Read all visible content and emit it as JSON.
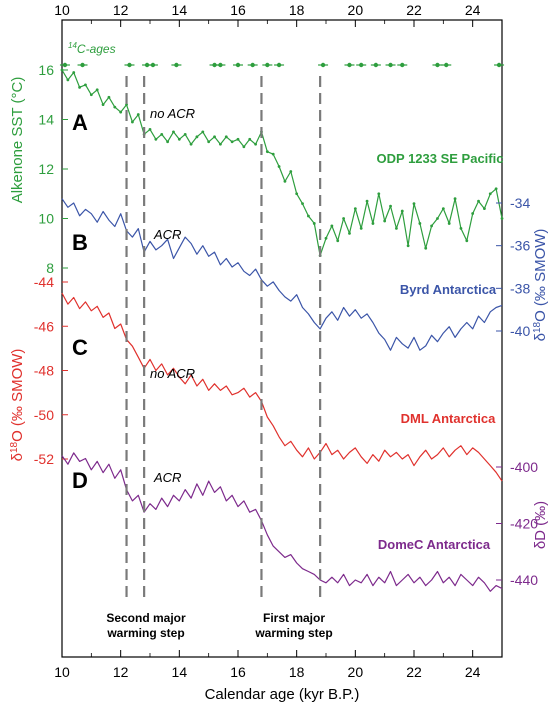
{
  "chart_data": {
    "type": "line",
    "xlabel": "Calendar age (kyr B.P.)",
    "xlim": [
      10,
      25
    ],
    "x_ticks": [
      "10",
      "12",
      "14",
      "16",
      "18",
      "20",
      "22",
      "24"
    ],
    "c14_label": "14C-ages",
    "c14_ages": [
      10.1,
      10.7,
      12.3,
      12.9,
      13.1,
      13.9,
      15.2,
      15.4,
      16.0,
      16.5,
      17.0,
      17.4,
      18.9,
      19.8,
      20.2,
      20.7,
      21.2,
      21.6,
      22.8,
      23.1,
      24.9
    ],
    "panels": [
      {
        "letter": "A",
        "name": "ODP 1233 SE Pacific",
        "ylabel": "Alkenone SST (°C)",
        "axis_side": "left",
        "color": "#2e9e3e",
        "yticks": [
          "8",
          "10",
          "12",
          "14",
          "16"
        ],
        "annotation": "no ACR",
        "x": [
          10.0,
          10.2,
          10.4,
          10.6,
          10.8,
          11.0,
          11.2,
          11.4,
          11.6,
          11.8,
          12.0,
          12.2,
          12.4,
          12.6,
          12.8,
          13.0,
          13.2,
          13.4,
          13.6,
          13.8,
          14.0,
          14.2,
          14.4,
          14.6,
          14.8,
          15.0,
          15.2,
          15.4,
          15.6,
          15.8,
          16.0,
          16.2,
          16.4,
          16.6,
          16.8,
          17.0,
          17.2,
          17.4,
          17.6,
          17.8,
          18.0,
          18.2,
          18.4,
          18.6,
          18.8,
          19.0,
          19.2,
          19.4,
          19.6,
          19.8,
          20.0,
          20.2,
          20.4,
          20.6,
          20.8,
          21.0,
          21.2,
          21.4,
          21.6,
          21.8,
          22.0,
          22.2,
          22.4,
          22.6,
          22.8,
          23.0,
          23.2,
          23.4,
          23.6,
          23.8,
          24.0,
          24.2,
          24.4,
          24.6,
          24.8,
          25.0
        ],
        "values": [
          16.0,
          15.6,
          15.9,
          15.3,
          15.4,
          15.0,
          15.2,
          14.6,
          14.9,
          14.5,
          14.3,
          14.6,
          13.9,
          14.2,
          13.4,
          13.6,
          13.2,
          13.4,
          13.1,
          13.5,
          13.2,
          13.4,
          13.0,
          13.3,
          13.5,
          13.1,
          13.3,
          13.0,
          13.3,
          13.1,
          13.2,
          12.9,
          13.2,
          13.0,
          13.5,
          12.7,
          12.6,
          12.1,
          11.5,
          11.9,
          11.0,
          10.6,
          10.1,
          9.8,
          8.5,
          9.2,
          9.7,
          9.1,
          10.0,
          9.4,
          10.4,
          9.6,
          10.7,
          9.8,
          11.0,
          9.9,
          10.5,
          9.6,
          10.3,
          8.9,
          10.6,
          9.8,
          8.8,
          9.7,
          10.0,
          10.4,
          9.8,
          10.8,
          9.6,
          9.1,
          10.2,
          10.7,
          10.4,
          11.0,
          11.2,
          10.0
        ]
      },
      {
        "letter": "B",
        "name": "Byrd Antarctica",
        "ylabel": "δ18O (‰ SMOW)",
        "axis_side": "right",
        "color": "#3b55a8",
        "yticks": [
          "-34",
          "-36",
          "-38",
          "-40"
        ],
        "annotation": "ACR",
        "x": [
          10.0,
          10.2,
          10.4,
          10.6,
          10.8,
          11.0,
          11.2,
          11.4,
          11.6,
          11.8,
          12.0,
          12.2,
          12.4,
          12.6,
          12.8,
          13.0,
          13.2,
          13.4,
          13.6,
          13.8,
          14.0,
          14.2,
          14.4,
          14.6,
          14.8,
          15.0,
          15.2,
          15.4,
          15.6,
          15.8,
          16.0,
          16.2,
          16.4,
          16.6,
          16.8,
          17.0,
          17.2,
          17.4,
          17.6,
          17.8,
          18.0,
          18.2,
          18.4,
          18.6,
          18.8,
          19.0,
          19.2,
          19.4,
          19.6,
          19.8,
          20.0,
          20.2,
          20.4,
          20.6,
          20.8,
          21.0,
          21.2,
          21.4,
          21.6,
          21.8,
          22.0,
          22.2,
          22.4,
          22.6,
          22.8,
          23.0,
          23.2,
          23.4,
          23.6,
          23.8,
          24.0,
          24.2,
          24.4,
          24.6,
          24.8,
          25.0
        ],
        "values": [
          -33.8,
          -34.2,
          -34.0,
          -34.6,
          -34.3,
          -34.5,
          -34.9,
          -34.4,
          -34.8,
          -35.1,
          -34.5,
          -35.3,
          -35.6,
          -35.2,
          -36.3,
          -35.8,
          -36.2,
          -36.0,
          -35.7,
          -36.6,
          -36.1,
          -35.6,
          -35.9,
          -36.4,
          -36.0,
          -36.5,
          -36.3,
          -36.9,
          -36.6,
          -37.0,
          -36.8,
          -37.2,
          -37.4,
          -37.1,
          -37.6,
          -37.9,
          -37.7,
          -38.1,
          -38.4,
          -38.6,
          -38.3,
          -38.9,
          -39.2,
          -39.6,
          -39.9,
          -39.4,
          -39.1,
          -39.5,
          -38.9,
          -39.3,
          -39.0,
          -39.4,
          -39.2,
          -39.6,
          -40.1,
          -40.4,
          -40.9,
          -40.3,
          -40.6,
          -40.8,
          -40.3,
          -40.9,
          -40.7,
          -40.2,
          -40.5,
          -40.1,
          -39.8,
          -40.3,
          -39.9,
          -39.6,
          -39.9,
          -39.3,
          -39.6,
          -39.1,
          -38.9,
          -38.8
        ]
      },
      {
        "letter": "C",
        "name": "DML Antarctica",
        "ylabel": "δ18O (‰ SMOW)",
        "axis_side": "left",
        "color": "#e0312d",
        "yticks": [
          "-44",
          "-46",
          "-48",
          "-50",
          "-52"
        ],
        "annotation": "no ACR",
        "x": [
          10.0,
          10.2,
          10.4,
          10.6,
          10.8,
          11.0,
          11.2,
          11.4,
          11.6,
          11.8,
          12.0,
          12.2,
          12.4,
          12.6,
          12.8,
          13.0,
          13.2,
          13.4,
          13.6,
          13.8,
          14.0,
          14.2,
          14.4,
          14.6,
          14.8,
          15.0,
          15.2,
          15.4,
          15.6,
          15.8,
          16.0,
          16.2,
          16.4,
          16.6,
          16.8,
          17.0,
          17.2,
          17.4,
          17.6,
          17.8,
          18.0,
          18.2,
          18.4,
          18.6,
          18.8,
          19.0,
          19.2,
          19.4,
          19.6,
          19.8,
          20.0,
          20.2,
          20.4,
          20.6,
          20.8,
          21.0,
          21.2,
          21.4,
          21.6,
          21.8,
          22.0,
          22.2,
          22.4,
          22.6,
          22.8,
          23.0,
          23.2,
          23.4,
          23.6,
          23.8,
          24.0,
          24.2,
          24.4,
          24.6,
          24.8,
          25.0
        ],
        "values": [
          -44.5,
          -45.0,
          -44.7,
          -45.2,
          -44.9,
          -45.3,
          -45.1,
          -45.6,
          -45.4,
          -46.1,
          -45.9,
          -46.6,
          -46.9,
          -47.4,
          -47.9,
          -47.5,
          -48.0,
          -47.7,
          -48.2,
          -47.9,
          -48.3,
          -48.6,
          -48.2,
          -48.7,
          -48.4,
          -48.9,
          -48.6,
          -48.9,
          -48.7,
          -49.1,
          -49.0,
          -48.8,
          -49.2,
          -49.0,
          -49.4,
          -50.1,
          -50.5,
          -51.0,
          -51.4,
          -51.2,
          -51.6,
          -51.9,
          -51.5,
          -52.0,
          -51.7,
          -51.3,
          -51.8,
          -51.6,
          -52.0,
          -51.7,
          -51.5,
          -51.9,
          -52.2,
          -51.8,
          -52.1,
          -51.6,
          -51.9,
          -51.7,
          -52.0,
          -51.8,
          -52.3,
          -51.9,
          -51.6,
          -52.0,
          -51.8,
          -51.5,
          -51.9,
          -51.6,
          -51.4,
          -51.8,
          -51.5,
          -51.7,
          -52.0,
          -52.3,
          -52.6,
          -53.0
        ]
      },
      {
        "letter": "D",
        "name": "DomeC Antarctica",
        "ylabel": "δD (‰)",
        "axis_side": "right",
        "color": "#7d2a8c",
        "yticks": [
          "-400",
          "-420",
          "-440"
        ],
        "annotation": "ACR",
        "x": [
          10.0,
          10.2,
          10.4,
          10.6,
          10.8,
          11.0,
          11.2,
          11.4,
          11.6,
          11.8,
          12.0,
          12.2,
          12.4,
          12.6,
          12.8,
          13.0,
          13.2,
          13.4,
          13.6,
          13.8,
          14.0,
          14.2,
          14.4,
          14.6,
          14.8,
          15.0,
          15.2,
          15.4,
          15.6,
          15.8,
          16.0,
          16.2,
          16.4,
          16.6,
          16.8,
          17.0,
          17.2,
          17.4,
          17.6,
          17.8,
          18.0,
          18.2,
          18.4,
          18.6,
          18.8,
          19.0,
          19.2,
          19.4,
          19.6,
          19.8,
          20.0,
          20.2,
          20.4,
          20.6,
          20.8,
          21.0,
          21.2,
          21.4,
          21.6,
          21.8,
          22.0,
          22.2,
          22.4,
          22.6,
          22.8,
          23.0,
          23.2,
          23.4,
          23.6,
          23.8,
          24.0,
          24.2,
          24.4,
          24.6,
          24.8,
          25.0
        ],
        "values": [
          -396,
          -399,
          -395,
          -398,
          -397,
          -401,
          -398,
          -402,
          -399,
          -404,
          -401,
          -408,
          -412,
          -410,
          -416,
          -413,
          -415,
          -411,
          -414,
          -410,
          -412,
          -408,
          -411,
          -406,
          -410,
          -405,
          -409,
          -407,
          -412,
          -410,
          -414,
          -412,
          -416,
          -415,
          -419,
          -424,
          -428,
          -430,
          -432,
          -431,
          -434,
          -436,
          -437,
          -438,
          -440,
          -441,
          -439,
          -441,
          -438,
          -442,
          -440,
          -441,
          -438,
          -442,
          -439,
          -441,
          -437,
          -442,
          -440,
          -438,
          -441,
          -439,
          -442,
          -440,
          -437,
          -441,
          -439,
          -442,
          -438,
          -440,
          -442,
          -439,
          -441,
          -444,
          -442,
          -443
        ]
      }
    ],
    "vertical_lines": [
      12.2,
      12.8,
      16.8,
      18.8
    ],
    "annotations": {
      "second_step": [
        "Second major",
        "warming step"
      ],
      "first_step": [
        "First major",
        "warming step"
      ]
    }
  }
}
